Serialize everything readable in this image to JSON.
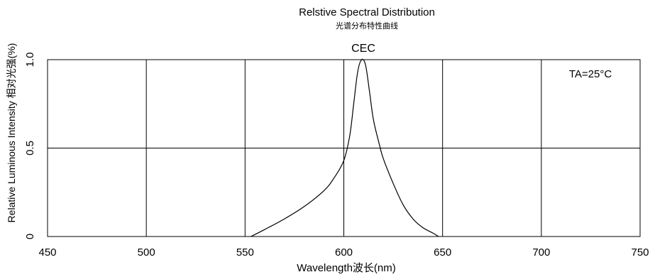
{
  "chart_data": {
    "type": "line",
    "title": "Relstive Spectral Distribution",
    "subtitle": "光谱分布特性曲线",
    "annotation_top": "CEC",
    "annotation_temp": "TA=25°C",
    "xlabel": "Wavelength波长(nm)",
    "ylabel": "Relative Luminous Intensity 相对光强(%)",
    "xlim": [
      450,
      750
    ],
    "ylim": [
      0,
      1.0
    ],
    "x_ticks": [
      450,
      500,
      550,
      600,
      650,
      700,
      750
    ],
    "y_ticks": [
      {
        "value": 0,
        "label": "0"
      },
      {
        "value": 0.5,
        "label": "0.5"
      },
      {
        "value": 1.0,
        "label": "1.0"
      }
    ],
    "grid": true,
    "series": [
      {
        "x": [
          553,
          560,
          570,
          580,
          590,
          595,
          600,
          603,
          605,
          607,
          609,
          611,
          613,
          615,
          618,
          620,
          625,
          630,
          635,
          640,
          645,
          648
        ],
        "y": [
          0.0,
          0.04,
          0.1,
          0.17,
          0.26,
          0.33,
          0.43,
          0.57,
          0.75,
          0.93,
          1.0,
          0.97,
          0.82,
          0.66,
          0.52,
          0.44,
          0.3,
          0.18,
          0.1,
          0.05,
          0.02,
          0.0
        ]
      }
    ],
    "line_color": "#000000"
  }
}
